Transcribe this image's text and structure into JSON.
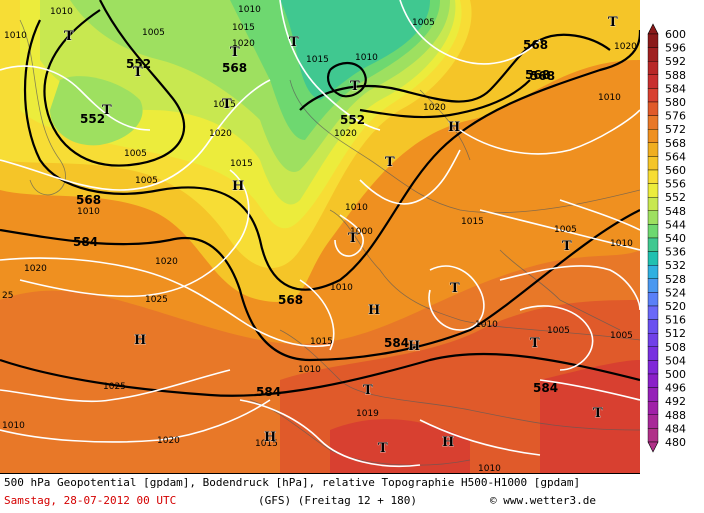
{
  "footer": {
    "line1": "500 hPa Geopotential [gpdam], Bodendruck [hPa], relative Topographie H500-H1000 [gpdam]",
    "date": "Samstag, 28-07-2012  00 UTC",
    "model": "(GFS)  (Freitag 12 + 180)",
    "copyright": "© www.wetter3.de"
  },
  "legend": {
    "values": [
      "600",
      "596",
      "592",
      "588",
      "584",
      "580",
      "576",
      "572",
      "568",
      "564",
      "560",
      "556",
      "552",
      "548",
      "544",
      "540",
      "536",
      "532",
      "528",
      "524",
      "520",
      "516",
      "512",
      "508",
      "504",
      "500",
      "496",
      "492",
      "488",
      "484",
      "480"
    ],
    "colors": [
      "#8b1a1a",
      "#a02020",
      "#b82828",
      "#c83030",
      "#d84030",
      "#e05a2a",
      "#e87828",
      "#ef9020",
      "#f0ae20",
      "#f5c528",
      "#f7dd35",
      "#ecec3c",
      "#c8e850",
      "#9ee060",
      "#6ed870",
      "#40c890",
      "#20c0b0",
      "#30b0e0",
      "#4a98f0",
      "#5a80f8",
      "#6a68f8",
      "#6a50f0",
      "#7040e8",
      "#7830e0",
      "#8028d8",
      "#8a20c8",
      "#9520b8",
      "#a020a8",
      "#a82898",
      "#b03088"
    ]
  },
  "map": {
    "geopotential_labels": [
      {
        "text": "552"
      },
      {
        "text": "552"
      },
      {
        "text": "568"
      },
      {
        "text": "568"
      },
      {
        "text": "552"
      },
      {
        "text": "568"
      },
      {
        "text": "568"
      },
      {
        "text": "568"
      },
      {
        "text": "584"
      },
      {
        "text": "568"
      },
      {
        "text": "584"
      },
      {
        "text": "584"
      },
      {
        "text": "584"
      }
    ],
    "pressure_labels": [
      {
        "text": "1010"
      },
      {
        "text": "1010"
      },
      {
        "text": "1005"
      },
      {
        "text": "1015"
      },
      {
        "text": "1010"
      },
      {
        "text": "1020"
      },
      {
        "text": "1005"
      },
      {
        "text": "1015"
      },
      {
        "text": "1010"
      },
      {
        "text": "1005"
      },
      {
        "text": "1020"
      },
      {
        "text": "1020"
      },
      {
        "text": "1005"
      },
      {
        "text": "1010"
      },
      {
        "text": "1015"
      },
      {
        "text": "1015"
      },
      {
        "text": "1010"
      },
      {
        "text": "1020"
      },
      {
        "text": "1015"
      },
      {
        "text": "1010"
      },
      {
        "text": "1020"
      },
      {
        "text": "1005"
      },
      {
        "text": "1010"
      },
      {
        "text": "1020"
      },
      {
        "text": "1025"
      },
      {
        "text": "25"
      },
      {
        "text": "1020"
      },
      {
        "text": "1010"
      },
      {
        "text": "1015"
      },
      {
        "text": "1010"
      },
      {
        "text": "1005"
      },
      {
        "text": "1005"
      },
      {
        "text": "1025"
      },
      {
        "text": "1010"
      },
      {
        "text": "1019"
      },
      {
        "text": "1020"
      },
      {
        "text": "1015"
      },
      {
        "text": "1010"
      },
      {
        "text": "1000"
      },
      {
        "text": "1010"
      }
    ],
    "pressure_centers": [
      {
        "text": "T"
      },
      {
        "text": "T"
      },
      {
        "text": "T"
      },
      {
        "text": "T"
      },
      {
        "text": "T"
      },
      {
        "text": "T"
      },
      {
        "text": "T"
      },
      {
        "text": "T"
      },
      {
        "text": "T"
      },
      {
        "text": "T"
      },
      {
        "text": "T"
      },
      {
        "text": "T"
      },
      {
        "text": "T"
      },
      {
        "text": "T"
      },
      {
        "text": "T"
      },
      {
        "text": "T"
      },
      {
        "text": "H"
      },
      {
        "text": "H"
      },
      {
        "text": "H"
      },
      {
        "text": "H"
      },
      {
        "text": "H"
      },
      {
        "text": "H"
      },
      {
        "text": "H"
      }
    ]
  }
}
